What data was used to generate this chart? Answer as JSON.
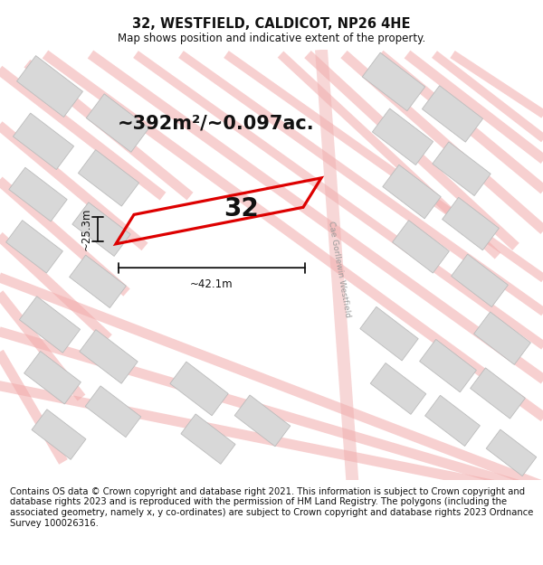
{
  "title": "32, WESTFIELD, CALDICOT, NP26 4HE",
  "subtitle": "Map shows position and indicative extent of the property.",
  "area_text": "~392m²/~0.097ac.",
  "width_label": "~42.1m",
  "height_label": "~25.3m",
  "plot_number": "32",
  "footer_text": "Contains OS data © Crown copyright and database right 2021. This information is subject to Crown copyright and database rights 2023 and is reproduced with the permission of HM Land Registry. The polygons (including the associated geometry, namely x, y co-ordinates) are subject to Crown copyright and database rights 2023 Ordnance Survey 100026316.",
  "bg_color": "#ffffff",
  "map_bg": "#f7f4f4",
  "road_color": "#f2aaaa",
  "building_color": "#d8d8d8",
  "building_edge": "#bbbbbb",
  "plot_edge_color": "#dd0000",
  "dim_color": "#111111",
  "title_fontsize": 10.5,
  "subtitle_fontsize": 8.5,
  "area_fontsize": 15,
  "footer_fontsize": 7.2,
  "road_lw": 7,
  "road_alpha": 0.55
}
